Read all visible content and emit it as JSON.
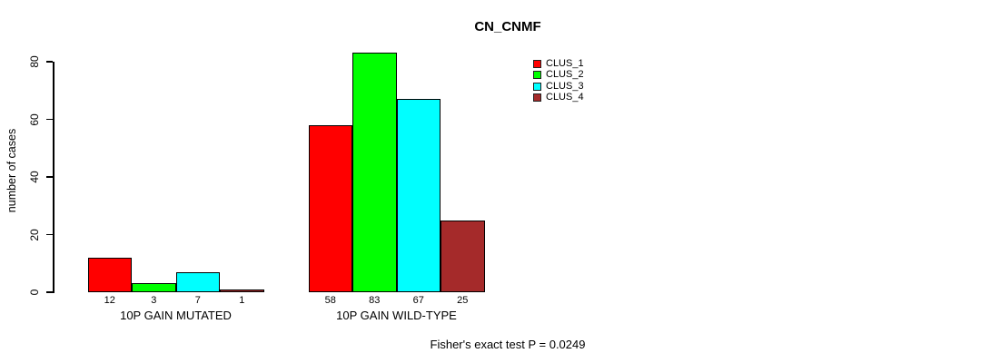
{
  "title": "CN_CNMF",
  "ylabel": "number of cases",
  "footer": "Fisher's exact test P = 0.0249",
  "chart_data": {
    "type": "bar",
    "title": "CN_CNMF",
    "xlabel": "",
    "ylabel": "number of cases",
    "categories": [
      "10P GAIN MUTATED",
      "10P GAIN WILD-TYPE"
    ],
    "series": [
      {
        "name": "CLUS_1",
        "color": "#FF0000",
        "values": [
          12,
          58
        ]
      },
      {
        "name": "CLUS_2",
        "color": "#00FF00",
        "values": [
          3,
          83
        ]
      },
      {
        "name": "CLUS_3",
        "color": "#00FFFF",
        "values": [
          7,
          67
        ]
      },
      {
        "name": "CLUS_4",
        "color": "#A52A2A",
        "values": [
          1,
          25
        ]
      }
    ],
    "bar_value_labels": [
      [
        "12",
        "3",
        "7",
        "1"
      ],
      [
        "58",
        "83",
        "67",
        "25"
      ]
    ],
    "yticks": [
      0,
      20,
      40,
      60,
      80
    ],
    "ylim": [
      0,
      80
    ],
    "grid": false,
    "legend_position": "top-right",
    "annotation": "Fisher's exact test P = 0.0249"
  }
}
